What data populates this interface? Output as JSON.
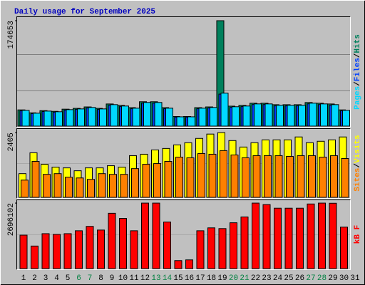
{
  "chart_data": {
    "type": "bar",
    "title": "Daily usage for September 2025",
    "title_color": "#0000c0",
    "legend_separator": "/",
    "categories": [
      "1",
      "2",
      "3",
      "4",
      "5",
      "6",
      "7",
      "8",
      "9",
      "10",
      "11",
      "12",
      "13",
      "14",
      "15",
      "16",
      "17",
      "18",
      "19",
      "20",
      "21",
      "22",
      "23",
      "24",
      "25",
      "26",
      "27",
      "28",
      "29",
      "30",
      "31"
    ],
    "category_colors": [
      "#000000",
      "#000000",
      "#000000",
      "#000000",
      "#000000",
      "#008040",
      "#008040",
      "#000000",
      "#000000",
      "#000000",
      "#000000",
      "#000000",
      "#008040",
      "#008040",
      "#000000",
      "#000000",
      "#000000",
      "#000000",
      "#000000",
      "#008040",
      "#008040",
      "#000000",
      "#000000",
      "#000000",
      "#000000",
      "#000000",
      "#008040",
      "#008040",
      "#000000",
      "#000000",
      "#000000"
    ],
    "panels": [
      {
        "type": "bar",
        "ylim": [
          0,
          179400
        ],
        "yticks": [
          174653
        ],
        "series": [
          {
            "name": "Hits",
            "color": "#00805c",
            "values": [
              26900,
              22000,
              25600,
              24500,
              28100,
              29400,
              31800,
              29400,
              36700,
              34300,
              30600,
              40400,
              40400,
              30600,
              15900,
              15900,
              30600,
              31800,
              174653,
              33100,
              34300,
              37900,
              37900,
              35500,
              35500,
              35500,
              39100,
              37900,
              36700,
              26900,
              null
            ]
          },
          {
            "name": "Files",
            "color": "#0040ff",
            "values": [
              25300,
              20800,
              24200,
              23100,
              26500,
              27600,
              30000,
              27600,
              34500,
              32300,
              28800,
              38000,
              38000,
              28800,
              14900,
              14900,
              28800,
              30000,
              53000,
              31100,
              32300,
              35700,
              35700,
              33500,
              33500,
              33500,
              36900,
              35700,
              34500,
              25300,
              null
            ]
          },
          {
            "name": "Pages",
            "color": "#00d8ff",
            "values": [
              26100,
              21400,
              24900,
              23800,
              27300,
              28500,
              30900,
              28500,
              35600,
              33300,
              29700,
              39200,
              39200,
              29700,
              15400,
              15400,
              29700,
              30900,
              54600,
              32100,
              33300,
              36800,
              36800,
              34500,
              34500,
              34500,
              38000,
              36800,
              35600,
              26100,
              null
            ]
          }
        ]
      },
      {
        "type": "bar",
        "ylim": [
          0,
          2540
        ],
        "yticks": [
          2405
        ],
        "series": [
          {
            "name": "Visits",
            "color": "#ffff00",
            "values": [
              881,
              1655,
              1228,
              1121,
              1095,
              988,
              1095,
              1095,
              1175,
              1121,
              1549,
              1602,
              1762,
              1816,
              1949,
              2029,
              2189,
              2350,
              2405,
              2109,
              1869,
              2029,
              2136,
              2136,
              2136,
              2243,
              2029,
              2083,
              2136,
              2243,
              null
            ]
          },
          {
            "name": "Sites",
            "color": "#ff8000",
            "values": [
              641,
              1335,
              854,
              881,
              748,
              721,
              668,
              881,
              854,
              854,
              1068,
              1228,
              1255,
              1335,
              1495,
              1469,
              1629,
              1602,
              1736,
              1575,
              1469,
              1549,
              1549,
              1549,
              1522,
              1549,
              1549,
              1495,
              1549,
              1442,
              null
            ]
          }
        ]
      },
      {
        "type": "bar",
        "ylim": [
          0,
          2815000
        ],
        "yticks": [
          2696102
        ],
        "series": [
          {
            "name": "kB F",
            "color": "#ff0000",
            "values": [
              1378000,
              928700,
              1437900,
              1408000,
              1437900,
              1557800,
              1737500,
              1587700,
              2276700,
              2067000,
              1557800,
              2696000,
              2696000,
              1917200,
              329500,
              359500,
              1557800,
              1677600,
              1647600,
              1887300,
              2126900,
              2696000,
              2636200,
              2486400,
              2486400,
              2486400,
              2660000,
              2696102,
              2690000,
              1707500,
              null
            ]
          }
        ]
      }
    ]
  }
}
